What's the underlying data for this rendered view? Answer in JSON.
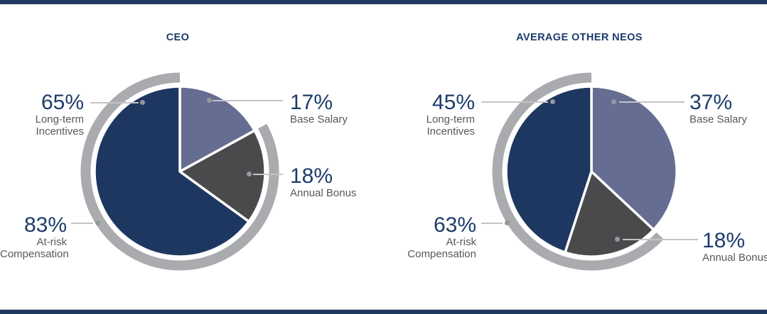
{
  "colors": {
    "navy": "#1d3760",
    "slate": "#666d92",
    "dark_gray": "#4a4a4d",
    "arc_gray": "#a9abae",
    "value_text": "#1d3c6b",
    "sub_text": "#57585a",
    "leader_line": "#c3c4c6",
    "leader_dot": "#97989b",
    "accent_bar": "#20395f",
    "slice_gap": "#ffffff"
  },
  "chart_data": [
    {
      "type": "pie",
      "title": "CEO",
      "unit": "%",
      "categories": [
        "Base Salary",
        "Annual Bonus",
        "Long-term Incentives"
      ],
      "values": [
        17,
        18,
        65
      ],
      "slices": [
        {
          "label": "Base Salary",
          "value": 17,
          "color_key": "slate"
        },
        {
          "label": "Annual Bonus",
          "value": 18,
          "color_key": "dark_gray"
        },
        {
          "label": "Long-term Incentives",
          "value": 65,
          "color_key": "navy"
        }
      ],
      "outer_ring": {
        "label": "At-risk Compensation",
        "value": 83,
        "start_pct": 17,
        "color_key": "arc_gray"
      },
      "callouts": {
        "lti": {
          "value": "65%",
          "lines": [
            "Long-term",
            "Incentives"
          ]
        },
        "base": {
          "value": "17%",
          "lines": [
            "Base Salary"
          ]
        },
        "bonus": {
          "value": "18%",
          "lines": [
            "Annual Bonus"
          ]
        },
        "atrisk": {
          "value": "83%",
          "lines": [
            "At-risk",
            "Compensation"
          ]
        }
      }
    },
    {
      "type": "pie",
      "title": "AVERAGE OTHER NEOS",
      "unit": "%",
      "categories": [
        "Base Salary",
        "Annual Bonus",
        "Long-term Incentives"
      ],
      "values": [
        37,
        18,
        45
      ],
      "slices": [
        {
          "label": "Base Salary",
          "value": 37,
          "color_key": "slate"
        },
        {
          "label": "Annual Bonus",
          "value": 18,
          "color_key": "dark_gray"
        },
        {
          "label": "Long-term Incentives",
          "value": 45,
          "color_key": "navy"
        }
      ],
      "outer_ring": {
        "label": "At-risk Compensation",
        "value": 63,
        "start_pct": 37,
        "color_key": "arc_gray"
      },
      "callouts": {
        "lti": {
          "value": "45%",
          "lines": [
            "Long-term",
            "Incentives"
          ]
        },
        "base": {
          "value": "37%",
          "lines": [
            "Base Salary"
          ]
        },
        "bonus": {
          "value": "18%",
          "lines": [
            "Annual Bonus"
          ]
        },
        "atrisk": {
          "value": "63%",
          "lines": [
            "At-risk",
            "Compensation"
          ]
        }
      }
    }
  ]
}
